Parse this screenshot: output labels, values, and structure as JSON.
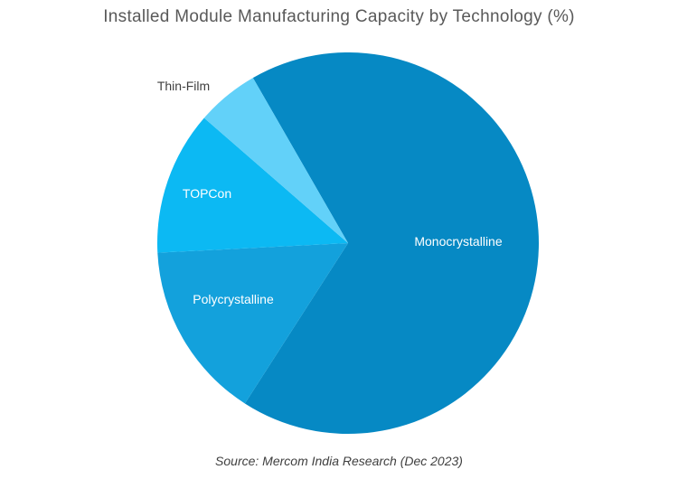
{
  "chart_data": {
    "type": "pie",
    "title": "Installed Module Manufacturing Capacity by Technology (%)",
    "source": "Source: Mercom India Research (Dec 2023)",
    "slices": [
      {
        "label": "Monocrystalline",
        "value": 67.4,
        "color": "#0689c4"
      },
      {
        "label": "Polycrystalline",
        "value": 15.1,
        "color": "#13a1dc"
      },
      {
        "label": "TOPCon",
        "value": 12.2,
        "color": "#0cb9f3"
      },
      {
        "label": "Thin-Film",
        "value": 5.3,
        "color": "#62d1f9"
      }
    ],
    "legend": "none",
    "labels": "inside"
  }
}
